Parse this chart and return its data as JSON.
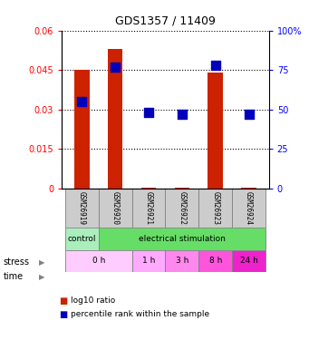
{
  "title": "GDS1357 / 11409",
  "samples": [
    "GSM26919",
    "GSM26920",
    "GSM26921",
    "GSM26922",
    "GSM26923",
    "GSM26924"
  ],
  "log10_ratio": [
    0.045,
    0.053,
    0.0004,
    0.0004,
    0.044,
    0.0004
  ],
  "percentile_rank": [
    55,
    77,
    48,
    47,
    78,
    47
  ],
  "ylim_left": [
    0,
    0.06
  ],
  "ylim_right": [
    0,
    100
  ],
  "yticks_left": [
    0,
    0.015,
    0.03,
    0.045,
    0.06
  ],
  "yticks_right": [
    0,
    25,
    50,
    75,
    100
  ],
  "ytick_labels_left": [
    "0",
    "0.015",
    "0.03",
    "0.045",
    "0.06"
  ],
  "ytick_labels_right": [
    "0",
    "25",
    "50",
    "75",
    "100%"
  ],
  "bar_color": "#cc2200",
  "dot_color": "#0000bb",
  "bar_width": 0.45,
  "sample_box_color": "#cccccc",
  "stress_ranges": [
    [
      -0.5,
      0.5
    ],
    [
      0.5,
      5.5
    ]
  ],
  "stress_colors": [
    "#aaeebb",
    "#66dd66"
  ],
  "stress_texts": [
    "control",
    "electrical stimulation"
  ],
  "time_ranges": [
    [
      -0.5,
      1.5
    ],
    [
      1.5,
      2.5
    ],
    [
      2.5,
      3.5
    ],
    [
      3.5,
      4.5
    ],
    [
      4.5,
      5.5
    ]
  ],
  "time_colors": [
    "#ffccff",
    "#ffaaff",
    "#ff88ee",
    "#ff55dd",
    "#ee22cc"
  ],
  "time_texts": [
    "0 h",
    "1 h",
    "3 h",
    "8 h",
    "24 h"
  ],
  "legend_red_label": "log10 ratio",
  "legend_blue_label": "percentile rank within the sample"
}
